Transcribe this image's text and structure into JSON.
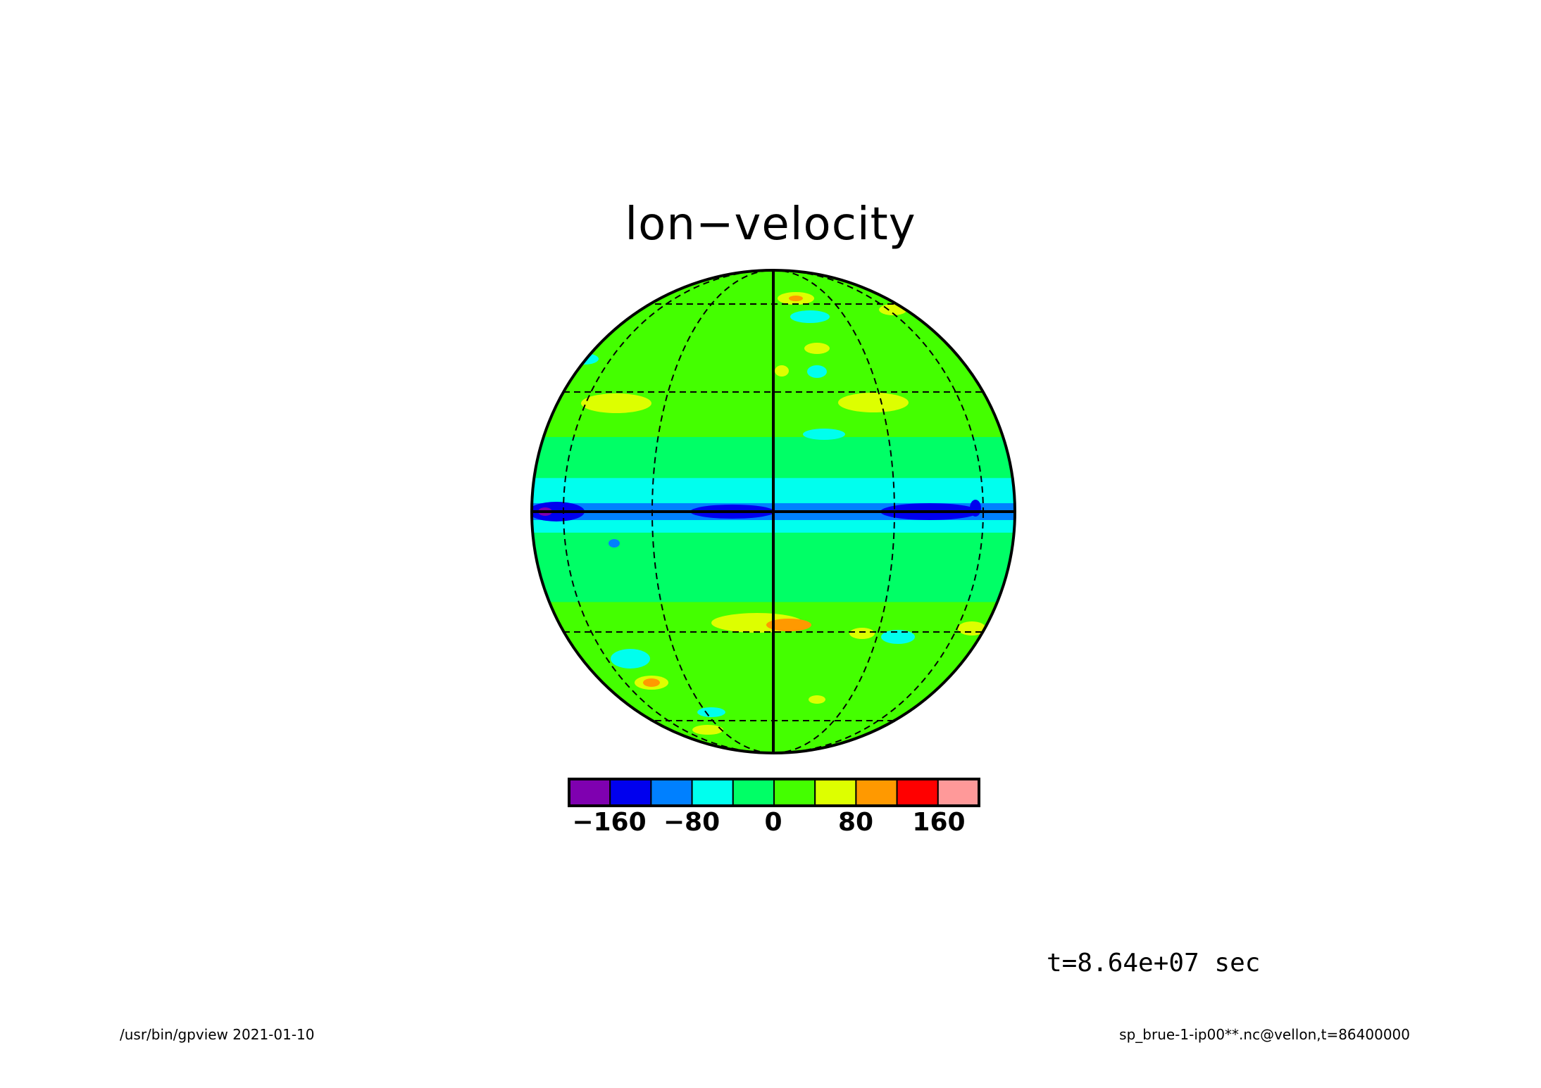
{
  "title": "lon-velocity",
  "colorbar": {
    "tick_labels": [
      "-160",
      "-80",
      "0",
      "80",
      "160"
    ],
    "tick_values": [
      -160,
      -80,
      0,
      80,
      160
    ],
    "levels": [
      -200,
      -160,
      -120,
      -80,
      -40,
      0,
      40,
      80,
      120,
      160,
      200
    ],
    "colors": [
      "#7f00b0",
      "#0000ee",
      "#0080ff",
      "#00ffee",
      "#00ff66",
      "#44ff00",
      "#ddff00",
      "#ff9900",
      "#ff0000",
      "#ff9999"
    ]
  },
  "time_label": "t=8.64e+07 sec",
  "footer": {
    "left": "/usr/bin/gpview   2021-01-10",
    "right": "sp_brue-1-ip00**.nc@vellon,t=86400000"
  },
  "map": {
    "projection": "orthographic",
    "variable": "lon-velocity",
    "bands": [
      {
        "lat_from": 90,
        "lat_to": 70,
        "value": 10
      },
      {
        "lat_from": 70,
        "lat_to": 40,
        "value": 20
      },
      {
        "lat_from": 40,
        "lat_to": 18,
        "value": 10
      },
      {
        "lat_from": 18,
        "lat_to": 8,
        "value": -20
      },
      {
        "lat_from": 8,
        "lat_to": 2,
        "value": -60
      },
      {
        "lat_from": 2,
        "lat_to": -2,
        "value": -100
      },
      {
        "lat_from": -2,
        "lat_to": -5,
        "value": -60
      },
      {
        "lat_from": -5,
        "lat_to": -22,
        "value": -20
      },
      {
        "lat_from": -22,
        "lat_to": -55,
        "value": 20
      },
      {
        "lat_from": -55,
        "lat_to": -90,
        "value": 10
      }
    ]
  }
}
